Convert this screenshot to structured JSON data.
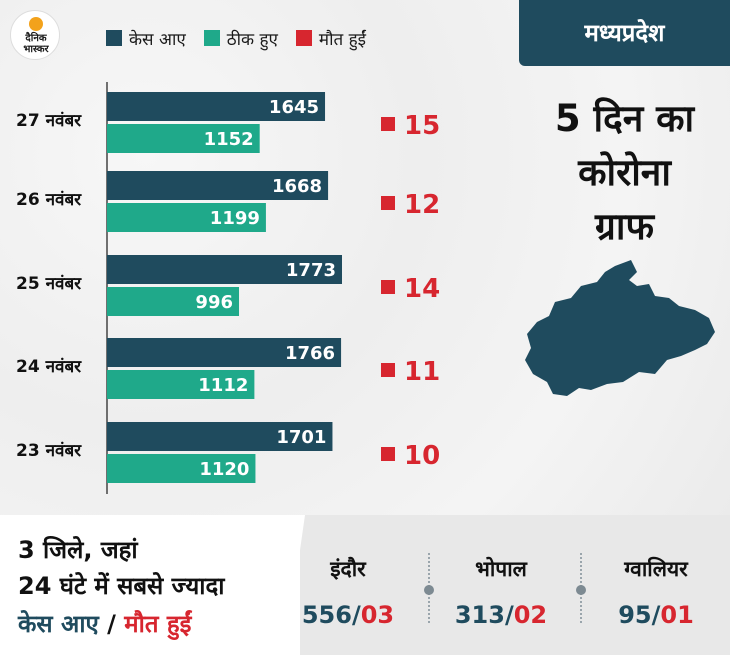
{
  "brand": {
    "logo_text": "दैनिक भास्कर"
  },
  "legend": {
    "cases_label": "केस आए",
    "recovered_label": "ठीक हुए",
    "deaths_label": "मौत हुईं"
  },
  "colors": {
    "cases": "#1f4b5e",
    "recovered": "#1fa98a",
    "deaths": "#d7262f",
    "banner": "#1f4b5e"
  },
  "panel": {
    "region": "मध्यप्रदेश",
    "headline_lines": [
      "5 दिन का",
      "कोरोना",
      "ग्राफ"
    ]
  },
  "chart_data": {
    "type": "bar",
    "orientation": "horizontal",
    "categories": [
      "27 नवंबर",
      "26 नवंबर",
      "25 नवंबर",
      "24 नवंबर",
      "23 नवंबर"
    ],
    "series": [
      {
        "name": "केस आए",
        "values": [
          1645,
          1668,
          1773,
          1766,
          1701
        ]
      },
      {
        "name": "ठीक हुए",
        "values": [
          1152,
          1199,
          996,
          1112,
          1120
        ]
      },
      {
        "name": "मौत हुईं",
        "values": [
          15,
          12,
          14,
          11,
          10
        ]
      }
    ],
    "xlim": [
      0,
      1773
    ],
    "legend_position": "top",
    "grid": false
  },
  "districts": {
    "heading_lines": [
      "3 जिले, जहां",
      "24 घंटे में सबसे ज्यादा"
    ],
    "subheading_cases": "केस आए",
    "subheading_sep": " / ",
    "subheading_deaths": "मौत हुईं",
    "cities": [
      {
        "name": "इंदौर",
        "cases": "556",
        "sep": "/",
        "deaths": "03"
      },
      {
        "name": "भोपाल",
        "cases": "313",
        "sep": "/",
        "deaths": "02"
      },
      {
        "name": "ग्वालियर",
        "cases": "95",
        "sep": "/",
        "deaths": "01"
      }
    ]
  }
}
